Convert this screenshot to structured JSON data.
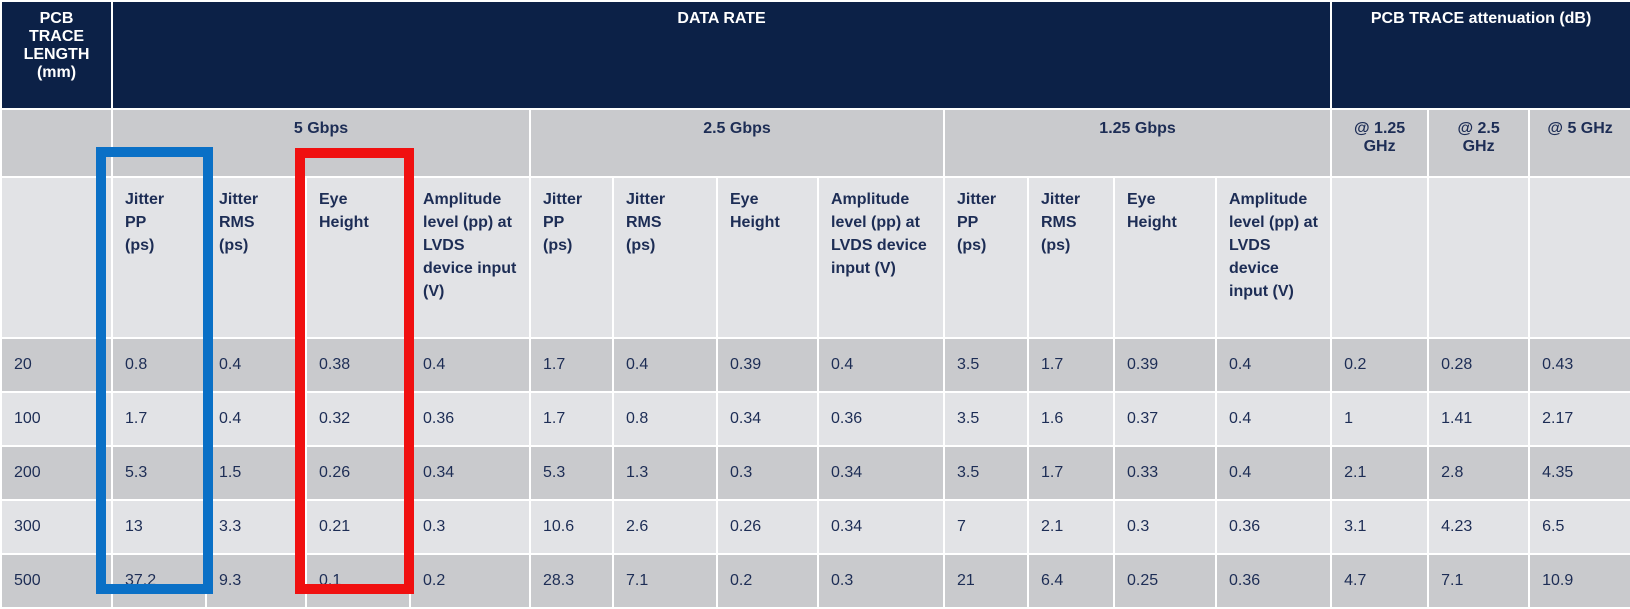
{
  "table": {
    "header": {
      "length": "PCB TRACE LENGTH (mm)",
      "data_rate": "DATA RATE",
      "attenuation": "PCB TRACE attenuation (dB)"
    },
    "groups": [
      {
        "rate": "5 Gbps",
        "columns": [
          "Jitter PP (ps)",
          "Jitter RMS (ps)",
          "Eye Height",
          "Amplitude level (pp) at LVDS device input (V)"
        ]
      },
      {
        "rate": "2.5 Gbps",
        "columns": [
          "Jitter PP (ps)",
          "Jitter RMS (ps)",
          "Eye Height",
          "Amplitude level (pp) at LVDS device input (V)"
        ]
      },
      {
        "rate": "1.25 Gbps",
        "columns": [
          "Jitter PP (ps)",
          "Jitter RMS (ps)",
          "Eye Height",
          "Amplitude level (pp) at LVDS device input (V)"
        ]
      }
    ],
    "frequencies": [
      "@ 1.25 GHz",
      "@ 2.5 GHz",
      "@ 5 GHz"
    ],
    "rows": [
      {
        "length": 20,
        "values": [
          0.8,
          0.4,
          0.38,
          0.4,
          1.7,
          0.4,
          0.39,
          0.4,
          3.5,
          1.7,
          0.39,
          0.4,
          0.2,
          0.28,
          0.43
        ]
      },
      {
        "length": 100,
        "values": [
          1.7,
          0.4,
          0.32,
          0.36,
          1.7,
          0.8,
          0.34,
          0.36,
          3.5,
          1.6,
          0.37,
          0.4,
          1,
          1.41,
          2.17
        ]
      },
      {
        "length": 200,
        "values": [
          5.3,
          1.5,
          0.26,
          0.34,
          5.3,
          1.3,
          0.3,
          0.34,
          3.5,
          1.7,
          0.33,
          0.4,
          2.1,
          2.8,
          4.35
        ]
      },
      {
        "length": 300,
        "values": [
          13,
          3.3,
          0.21,
          0.3,
          10.6,
          2.6,
          0.26,
          0.34,
          7,
          2.1,
          0.3,
          0.36,
          3.1,
          4.23,
          6.5
        ]
      },
      {
        "length": 500,
        "values": [
          37.2,
          9.3,
          0.1,
          0.2,
          28.3,
          7.1,
          0.2,
          0.3,
          21,
          6.4,
          0.25,
          0.36,
          4.7,
          7.1,
          10.9
        ]
      }
    ]
  }
}
